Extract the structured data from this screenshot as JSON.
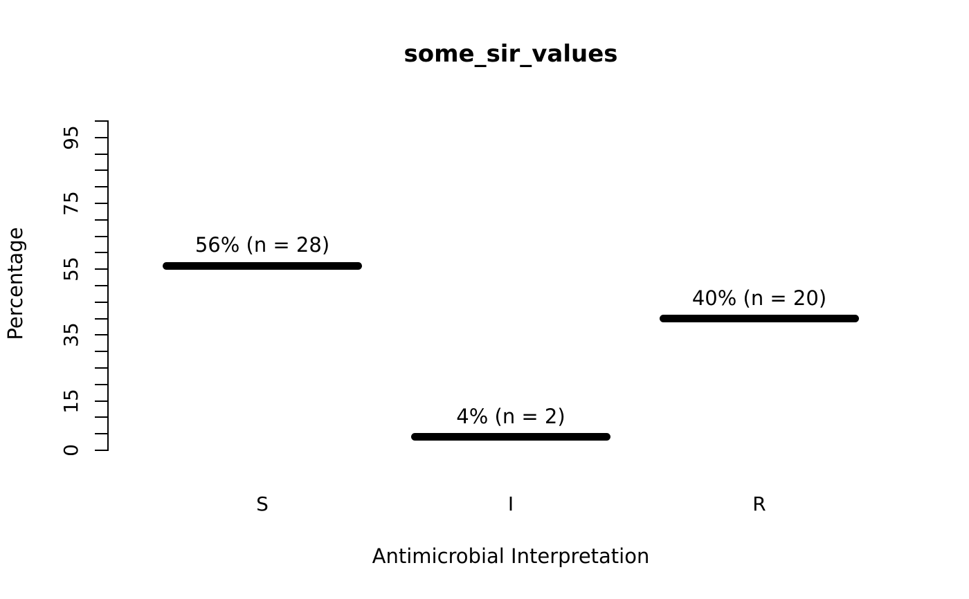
{
  "figure": {
    "background": "#ffffff",
    "ink_color": "#000000"
  },
  "chart_data": {
    "type": "bar",
    "style": "horizontal-dash-marks",
    "title": "some_sir_values",
    "xlabel": "Antimicrobial Interpretation",
    "ylabel": "Percentage",
    "categories": [
      "S",
      "I",
      "R"
    ],
    "values": [
      56,
      4,
      40
    ],
    "counts": [
      28,
      2,
      20
    ],
    "point_labels": [
      "56% (n = 28)",
      "4% (n = 2)",
      "40% (n = 20)"
    ],
    "ylim": [
      0,
      100
    ],
    "ytick_interval": 5,
    "ytick_label_values": [
      0,
      15,
      35,
      55,
      75,
      95
    ],
    "grid": false,
    "legend": "none",
    "mark_color": "#000000"
  }
}
